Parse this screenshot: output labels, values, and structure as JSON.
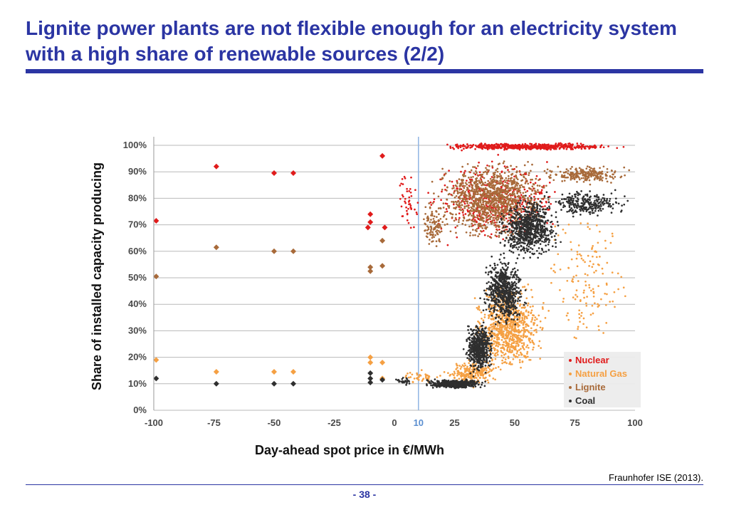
{
  "slide": {
    "title": "Lignite power plants are not flexible enough for an electricity system with a high share of renewable sources (2/2)",
    "source": "Fraunhofer ISE (2013).",
    "page_number": "- 38 -",
    "accent_color": "#2b35a3"
  },
  "chart_data": {
    "type": "scatter",
    "title": "",
    "xlabel": "Day-ahead spot price in €/MWh",
    "ylabel": "Share of installed capacity producing",
    "xlim": [
      -100,
      100
    ],
    "ylim": [
      0,
      100
    ],
    "x_ticks": [
      -100,
      -75,
      -50,
      -25,
      0,
      10,
      25,
      50,
      75,
      100
    ],
    "x_tick_labels": [
      "-100",
      "-75",
      "-50",
      "-25",
      "0",
      "10",
      "25",
      "50",
      "75",
      "100"
    ],
    "y_ticks": [
      0,
      10,
      20,
      30,
      40,
      50,
      60,
      70,
      80,
      90,
      100
    ],
    "y_tick_labels": [
      "0%",
      "10%",
      "20%",
      "30%",
      "40%",
      "50%",
      "60%",
      "70%",
      "80%",
      "90%",
      "100%"
    ],
    "reference_line_x": 10,
    "reference_line_color": "#8fb4e3",
    "grid": "horizontal",
    "legend_position": "bottom-right",
    "series": [
      {
        "name": "Nuclear",
        "color": "#e01b1b",
        "markers": [
          {
            "x": -99,
            "y": 71.5
          },
          {
            "x": -74,
            "y": 92
          },
          {
            "x": -50,
            "y": 89.5
          },
          {
            "x": -42,
            "y": 89.5
          },
          {
            "x": -10,
            "y": 74
          },
          {
            "x": -10,
            "y": 71
          },
          {
            "x": -11,
            "y": 69
          },
          {
            "x": -5,
            "y": 96
          },
          {
            "x": -4,
            "y": 69
          }
        ],
        "clusters": [
          {
            "x_range": [
              12,
              100
            ],
            "y_range": [
              98,
              101
            ],
            "count": 520
          },
          {
            "x_range": [
              10,
              75
            ],
            "y_range": [
              60,
              98
            ],
            "count": 420
          },
          {
            "x_range": [
              0,
              12
            ],
            "y_range": [
              60,
              98
            ],
            "count": 45
          }
        ]
      },
      {
        "name": "Natural Gas",
        "color": "#f5a043",
        "markers": [
          {
            "x": -99,
            "y": 19
          },
          {
            "x": -74,
            "y": 14.5
          },
          {
            "x": -50,
            "y": 14.5
          },
          {
            "x": -42,
            "y": 14.5
          },
          {
            "x": -10,
            "y": 20
          },
          {
            "x": -10,
            "y": 18
          },
          {
            "x": -5,
            "y": 18
          },
          {
            "x": -5,
            "y": 12
          }
        ],
        "clusters": [
          {
            "x_range": [
              30,
              65
            ],
            "y_range": [
              12,
              50
            ],
            "count": 800
          },
          {
            "x_range": [
              20,
              45
            ],
            "y_range": [
              8,
              20
            ],
            "count": 220
          },
          {
            "x_range": [
              60,
              100
            ],
            "y_range": [
              20,
              80
            ],
            "count": 140
          },
          {
            "x_range": [
              2,
              20
            ],
            "y_range": [
              9,
              16
            ],
            "count": 40
          }
        ]
      },
      {
        "name": "Lignite",
        "color": "#a86a3a",
        "markers": [
          {
            "x": -99,
            "y": 50.5
          },
          {
            "x": -74,
            "y": 61.5
          },
          {
            "x": -50,
            "y": 60
          },
          {
            "x": -42,
            "y": 60
          },
          {
            "x": -10,
            "y": 54
          },
          {
            "x": -10,
            "y": 52.5
          },
          {
            "x": -5,
            "y": 54.5
          },
          {
            "x": -5,
            "y": 64
          }
        ],
        "clusters": [
          {
            "x_range": [
              12,
              70
            ],
            "y_range": [
              62,
              97
            ],
            "count": 1100
          },
          {
            "x_range": [
              60,
              100
            ],
            "y_range": [
              85,
              93
            ],
            "count": 220
          },
          {
            "x_range": [
              10,
              22
            ],
            "y_range": [
              60,
              80
            ],
            "count": 100
          }
        ]
      },
      {
        "name": "Coal",
        "color": "#2f2f2f",
        "markers": [
          {
            "x": -99,
            "y": 12
          },
          {
            "x": -74,
            "y": 10
          },
          {
            "x": -50,
            "y": 10
          },
          {
            "x": -42,
            "y": 10
          },
          {
            "x": -10,
            "y": 14
          },
          {
            "x": -10,
            "y": 12
          },
          {
            "x": -10,
            "y": 10.5
          },
          {
            "x": -5,
            "y": 11.5
          }
        ],
        "clusters": [
          {
            "x_range": [
              10,
              40
            ],
            "y_range": [
              8,
              12
            ],
            "count": 420
          },
          {
            "x_range": [
              28,
              42
            ],
            "y_range": [
              12,
              35
            ],
            "count": 500
          },
          {
            "x_range": [
              35,
              55
            ],
            "y_range": [
              30,
              60
            ],
            "count": 600
          },
          {
            "x_range": [
              42,
              70
            ],
            "y_range": [
              55,
              82
            ],
            "count": 700
          },
          {
            "x_range": [
              60,
              100
            ],
            "y_range": [
              72,
              84
            ],
            "count": 260
          },
          {
            "x_range": [
              0,
              8
            ],
            "y_range": [
              9,
              13
            ],
            "count": 30
          }
        ]
      }
    ]
  }
}
